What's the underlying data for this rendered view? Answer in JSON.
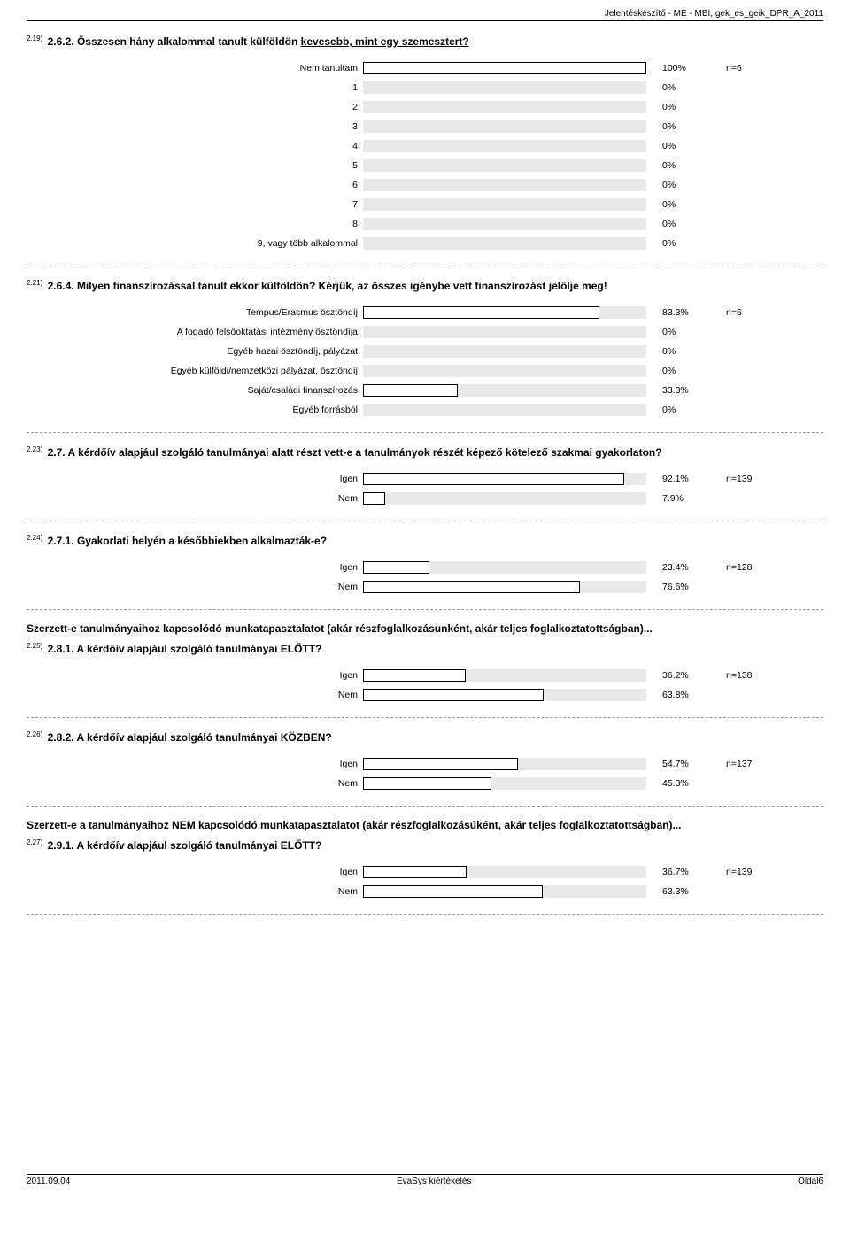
{
  "header": "Jelentéskészítő - ME - MBI, gek_es_geik_DPR_A_2011",
  "labels": {
    "n_prefix": "n="
  },
  "colors": {
    "bar_bg": "#e8e8e8",
    "bar_outline": "#000000",
    "text": "#000000",
    "dash": "#999999"
  },
  "questions": [
    {
      "num_sup": "2.19)",
      "num": "2.6.2.",
      "title_prefix": "Összesen hány alkalommal tanult külföldön ",
      "title_underline": "kevesebb, mint egy szemesztert?",
      "title_suffix": "",
      "n": 6,
      "rows": [
        {
          "label": "Nem tanultam",
          "pct": 100
        },
        {
          "label": "1",
          "pct": 0
        },
        {
          "label": "2",
          "pct": 0
        },
        {
          "label": "3",
          "pct": 0
        },
        {
          "label": "4",
          "pct": 0
        },
        {
          "label": "5",
          "pct": 0
        },
        {
          "label": "6",
          "pct": 0
        },
        {
          "label": "7",
          "pct": 0
        },
        {
          "label": "8",
          "pct": 0
        },
        {
          "label": "9, vagy több alkalommal",
          "pct": 0
        }
      ]
    },
    {
      "num_sup": "2.21)",
      "num": "2.6.4.",
      "title_prefix": "Milyen finanszírozással tanult ekkor külföldön? Kérjük, az összes igénybe vett finanszírozást jelölje meg!",
      "title_underline": "",
      "title_suffix": "",
      "n": 6,
      "rows": [
        {
          "label": "Tempus/Erasmus ösztöndíj",
          "pct": 83.3
        },
        {
          "label": "A fogadó felsőoktatási intézmény ösztöndíja",
          "pct": 0
        },
        {
          "label": "Egyéb hazai ösztöndíj, pályázat",
          "pct": 0
        },
        {
          "label": "Egyéb külföldi/nemzetközi pályázat, ösztöndíj",
          "pct": 0
        },
        {
          "label": "Saját/családi finanszírozás",
          "pct": 33.3
        },
        {
          "label": "Egyéb forrásból",
          "pct": 0
        }
      ]
    },
    {
      "num_sup": "2.23)",
      "num": "2.7.",
      "title_prefix": "A kérdőív alapjául szolgáló tanulmányai alatt részt vett-e a tanulmányok részét képező kötelező szakmai gyakorlaton?",
      "title_underline": "",
      "title_suffix": "",
      "n": 139,
      "rows": [
        {
          "label": "Igen",
          "pct": 92.1
        },
        {
          "label": "Nem",
          "pct": 7.9
        }
      ]
    },
    {
      "num_sup": "2.24)",
      "num": "2.7.1.",
      "title_prefix": "Gyakorlati helyén a későbbiekben alkalmazták-e?",
      "title_underline": "",
      "title_suffix": "",
      "n": 128,
      "rows": [
        {
          "label": "Igen",
          "pct": 23.4
        },
        {
          "label": "Nem",
          "pct": 76.6
        }
      ]
    },
    {
      "section_text": "Szerzett-e tanulmányaihoz kapcsolódó munkatapasztalatot (akár részfoglalkozásunként, akár teljes foglalkoztatottságban)...",
      "num_sup": "2.25)",
      "num": "2.8.1.",
      "title_prefix": "A kérdőív alapjául szolgáló tanulmányai ELŐTT?",
      "title_underline": "",
      "title_suffix": "",
      "n": 138,
      "rows": [
        {
          "label": "Igen",
          "pct": 36.2
        },
        {
          "label": "Nem",
          "pct": 63.8
        }
      ]
    },
    {
      "num_sup": "2.26)",
      "num": "2.8.2.",
      "title_prefix": "A kérdőív alapjául szolgáló tanulmányai KÖZBEN?",
      "title_underline": "",
      "title_suffix": "",
      "n": 137,
      "rows": [
        {
          "label": "Igen",
          "pct": 54.7
        },
        {
          "label": "Nem",
          "pct": 45.3
        }
      ]
    },
    {
      "section_text": "Szerzett-e a tanulmányaihoz NEM kapcsolódó munkatapasztalatot (akár részfoglalkozásúként, akár teljes foglalkoztatottságban)...",
      "num_sup": "2.27)",
      "num": "2.9.1.",
      "title_prefix": "A kérdőív alapjául szolgáló tanulmányai ELŐTT?",
      "title_underline": "",
      "title_suffix": "",
      "n": 139,
      "rows": [
        {
          "label": "Igen",
          "pct": 36.7
        },
        {
          "label": "Nem",
          "pct": 63.3
        }
      ]
    }
  ],
  "footer": {
    "left": "2011.09.04",
    "center": "EvaSys kiértékelés",
    "right": "Oldal6"
  }
}
